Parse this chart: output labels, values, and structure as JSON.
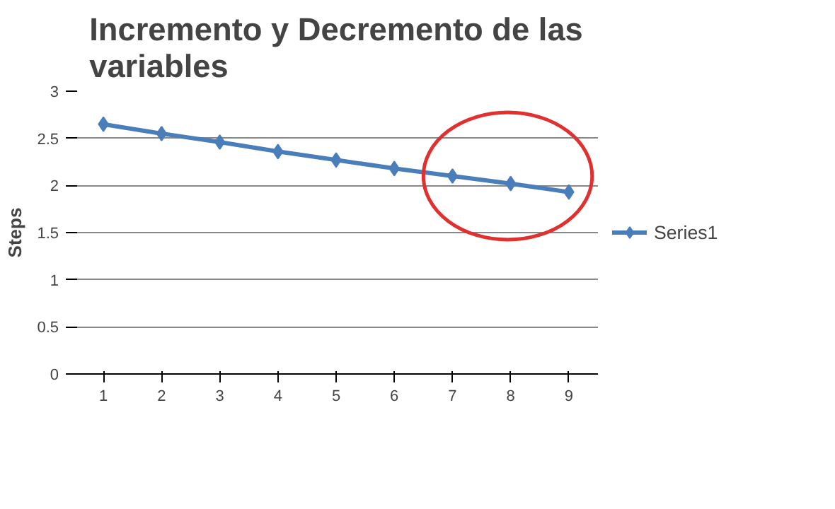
{
  "chart_data": {
    "type": "line",
    "title": "Incremento y Decremento de las variables",
    "ylabel": "Steps",
    "categories": [
      "1",
      "2",
      "3",
      "4",
      "5",
      "6",
      "7",
      "8",
      "9"
    ],
    "series": [
      {
        "name": "Series1",
        "color": "#4a7ebb",
        "values": [
          2.65,
          2.55,
          2.46,
          2.36,
          2.27,
          2.18,
          2.1,
          2.02,
          1.93
        ]
      }
    ],
    "ylim": [
      0,
      3
    ],
    "yticks": [
      0,
      0.5,
      1,
      1.5,
      2,
      2.5,
      3
    ],
    "grid": "y",
    "legend": "right",
    "marker": "diamond"
  }
}
